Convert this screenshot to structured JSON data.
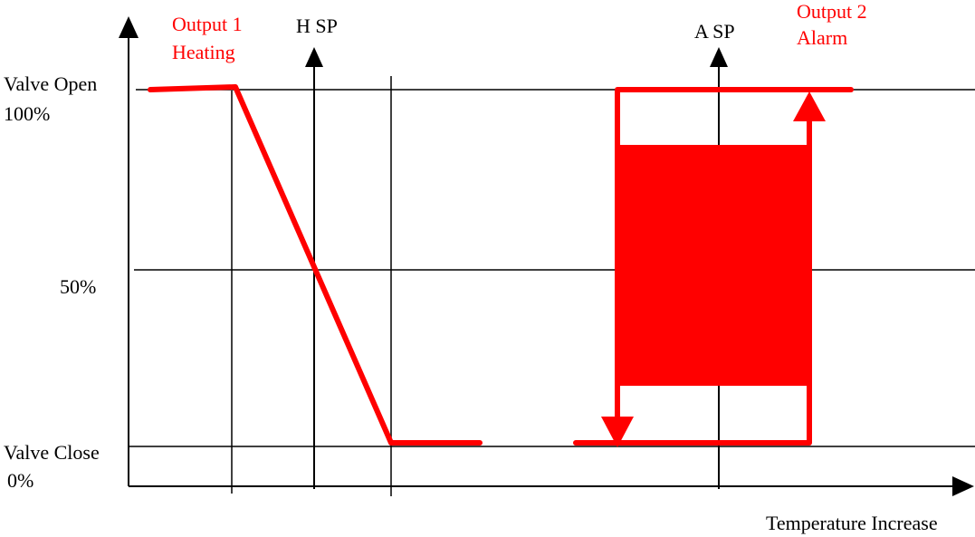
{
  "colors": {
    "line": "#000000",
    "accent": "#ff0000"
  },
  "labels": {
    "valve_open": "Valve Open",
    "pct_100": "100%",
    "pct_50": "50%",
    "valve_close": "Valve Close",
    "pct_0": "0%",
    "output1_line1": "Output 1",
    "output1_line2": "Heating",
    "h_sp": "H SP",
    "a_sp": "A SP",
    "output2_line1": "Output 2",
    "output2_line2": "Alarm",
    "x_axis": "Temperature Increase"
  }
}
